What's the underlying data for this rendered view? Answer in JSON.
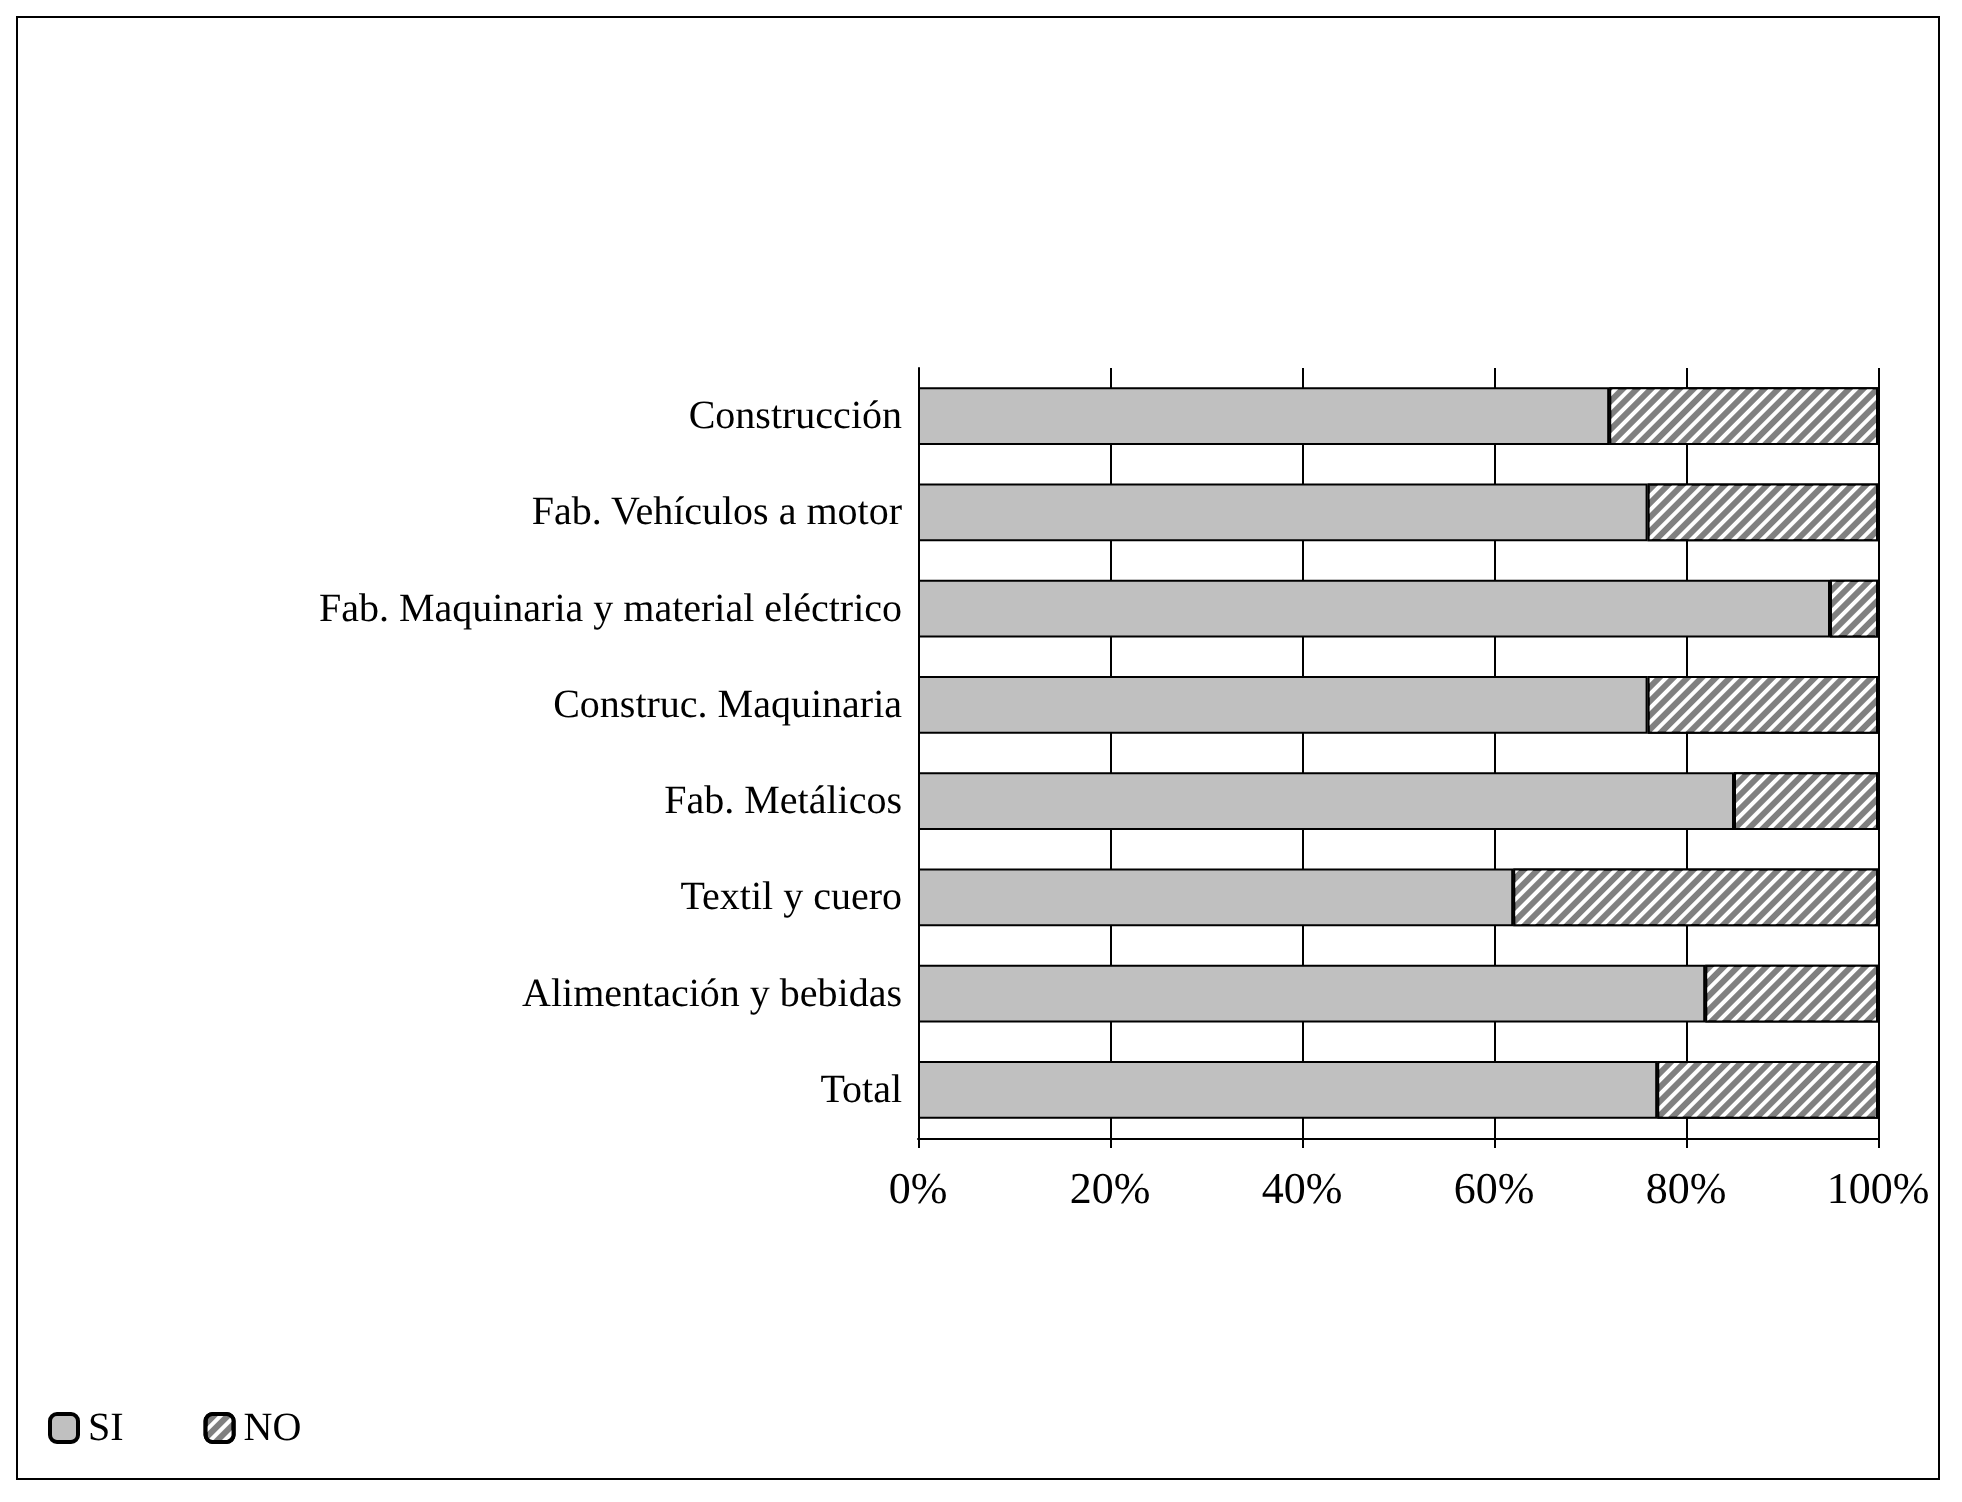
{
  "chart_data": {
    "type": "bar",
    "orientation": "horizontal",
    "stacked": true,
    "categories": [
      "Construcción",
      "Fab. Vehículos a motor",
      "Fab. Maquinaria y material eléctrico",
      "Construc. Maquinaria",
      "Fab. Metálicos",
      "Textil y cuero",
      "Alimentación y bebidas",
      "Total"
    ],
    "series": [
      {
        "name": "SI",
        "color": "#c0c0c0",
        "values": [
          72,
          76,
          95,
          76,
          85,
          62,
          82,
          77
        ]
      },
      {
        "name": "NO",
        "color": "#808080",
        "values": [
          28,
          24,
          5,
          24,
          15,
          38,
          18,
          23
        ]
      }
    ],
    "xlim": [
      0,
      100
    ],
    "xticks": [
      {
        "value": 0,
        "label": "0%"
      },
      {
        "value": 20,
        "label": "20%"
      },
      {
        "value": 40,
        "label": "40%"
      },
      {
        "value": 60,
        "label": "60%"
      },
      {
        "value": 80,
        "label": "80%"
      },
      {
        "value": 100,
        "label": "100%"
      }
    ],
    "grid": "x",
    "legend": "bottom left"
  }
}
